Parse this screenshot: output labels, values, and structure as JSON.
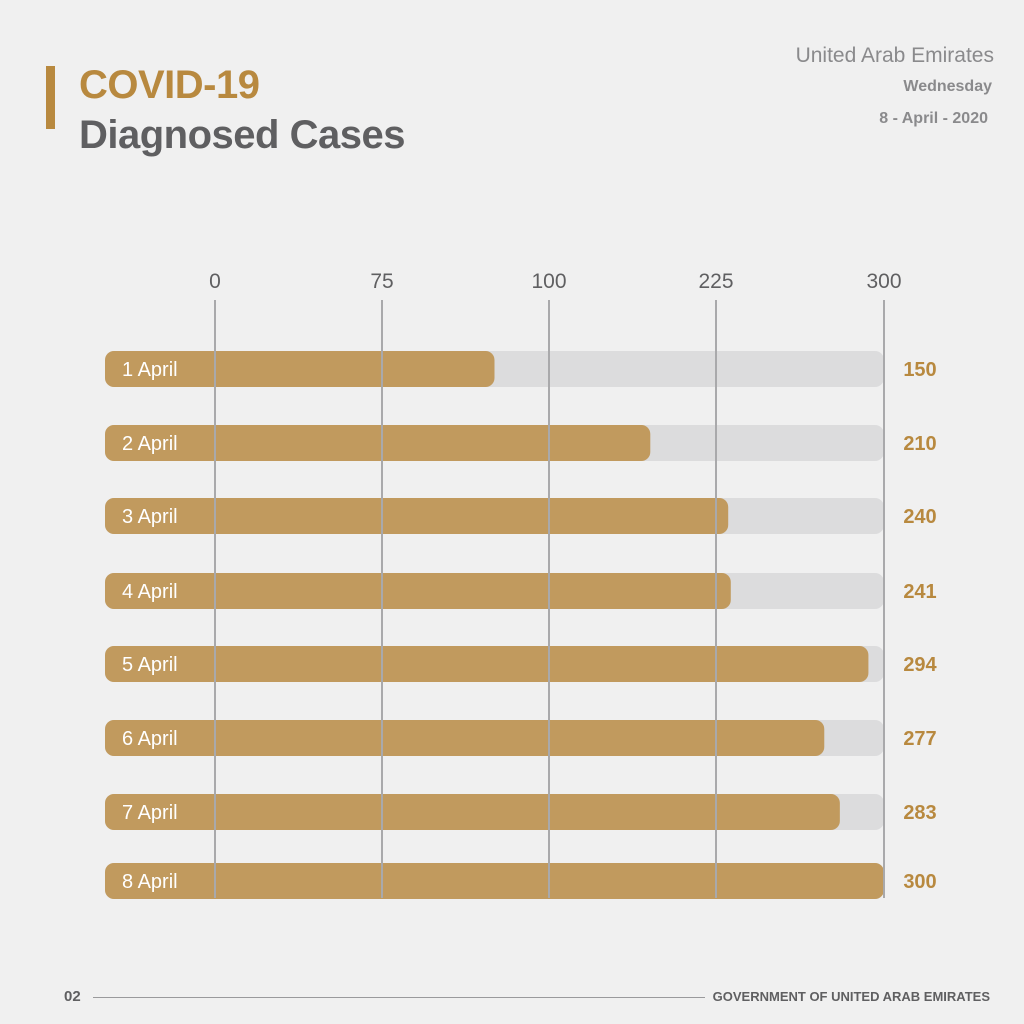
{
  "header": {
    "title_line1": "COVID-19",
    "title_line2": "Diagnosed Cases",
    "country": "United Arab Emirates",
    "weekday": "Wednesday",
    "date": "8 - April - 2020"
  },
  "footer": {
    "page_number": "02",
    "organization": "GOVERNMENT OF UNITED ARAB EMIRATES"
  },
  "colors": {
    "accent": "#b8893f",
    "bar": "#c19a5e",
    "track": "#dcdcdd",
    "gridline": "#a9a9ab",
    "title_gray": "#5f5f61",
    "value_text": "#b8893f",
    "tick_text": "#5f5f61"
  },
  "chart_data": {
    "type": "bar",
    "orientation": "horizontal",
    "x_tick_labels": [
      "0",
      "75",
      "100",
      "225",
      "300"
    ],
    "xlim": [
      0,
      300
    ],
    "grid": true,
    "categories": [
      "1 April",
      "2 April",
      "3 April",
      "4 April",
      "5 April",
      "6 April",
      "7 April",
      "8 April"
    ],
    "values": [
      150,
      210,
      240,
      241,
      294,
      277,
      283,
      300
    ],
    "value_labels": [
      "150",
      "210",
      "240",
      "241",
      "294",
      "277",
      "283",
      "300"
    ]
  }
}
